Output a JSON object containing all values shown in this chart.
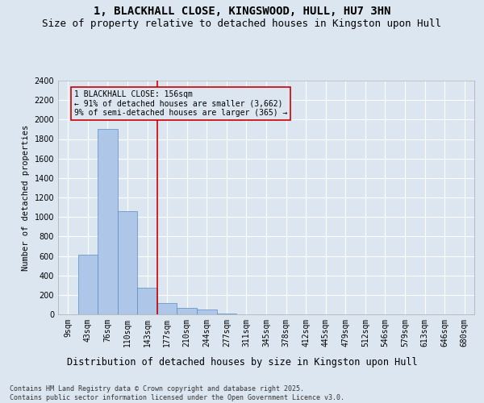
{
  "title1": "1, BLACKHALL CLOSE, KINGSWOOD, HULL, HU7 3HN",
  "title2": "Size of property relative to detached houses in Kingston upon Hull",
  "xlabel": "Distribution of detached houses by size in Kingston upon Hull",
  "ylabel": "Number of detached properties",
  "categories": [
    "9sqm",
    "43sqm",
    "76sqm",
    "110sqm",
    "143sqm",
    "177sqm",
    "210sqm",
    "244sqm",
    "277sqm",
    "311sqm",
    "345sqm",
    "378sqm",
    "412sqm",
    "445sqm",
    "479sqm",
    "512sqm",
    "546sqm",
    "579sqm",
    "613sqm",
    "646sqm",
    "680sqm"
  ],
  "values": [
    2,
    610,
    1900,
    1060,
    270,
    115,
    70,
    50,
    10,
    0,
    0,
    0,
    0,
    0,
    0,
    0,
    0,
    0,
    0,
    0,
    0
  ],
  "bar_color": "#aec6e8",
  "bar_edge_color": "#5a8cbf",
  "vline_x": 4.5,
  "vline_color": "#cc0000",
  "annotation_box_text": "1 BLACKHALL CLOSE: 156sqm\n← 91% of detached houses are smaller (3,662)\n9% of semi-detached houses are larger (365) →",
  "ylim": [
    0,
    2400
  ],
  "yticks": [
    0,
    200,
    400,
    600,
    800,
    1000,
    1200,
    1400,
    1600,
    1800,
    2000,
    2200,
    2400
  ],
  "background_color": "#dce6f1",
  "plot_bg_color": "#dce6f1",
  "grid_color": "#ffffff",
  "footer": "Contains HM Land Registry data © Crown copyright and database right 2025.\nContains public sector information licensed under the Open Government Licence v3.0.",
  "title1_fontsize": 10,
  "title2_fontsize": 9,
  "xlabel_fontsize": 8.5,
  "ylabel_fontsize": 7.5,
  "tick_fontsize": 7,
  "footer_fontsize": 6,
  "ann_fontsize": 7
}
